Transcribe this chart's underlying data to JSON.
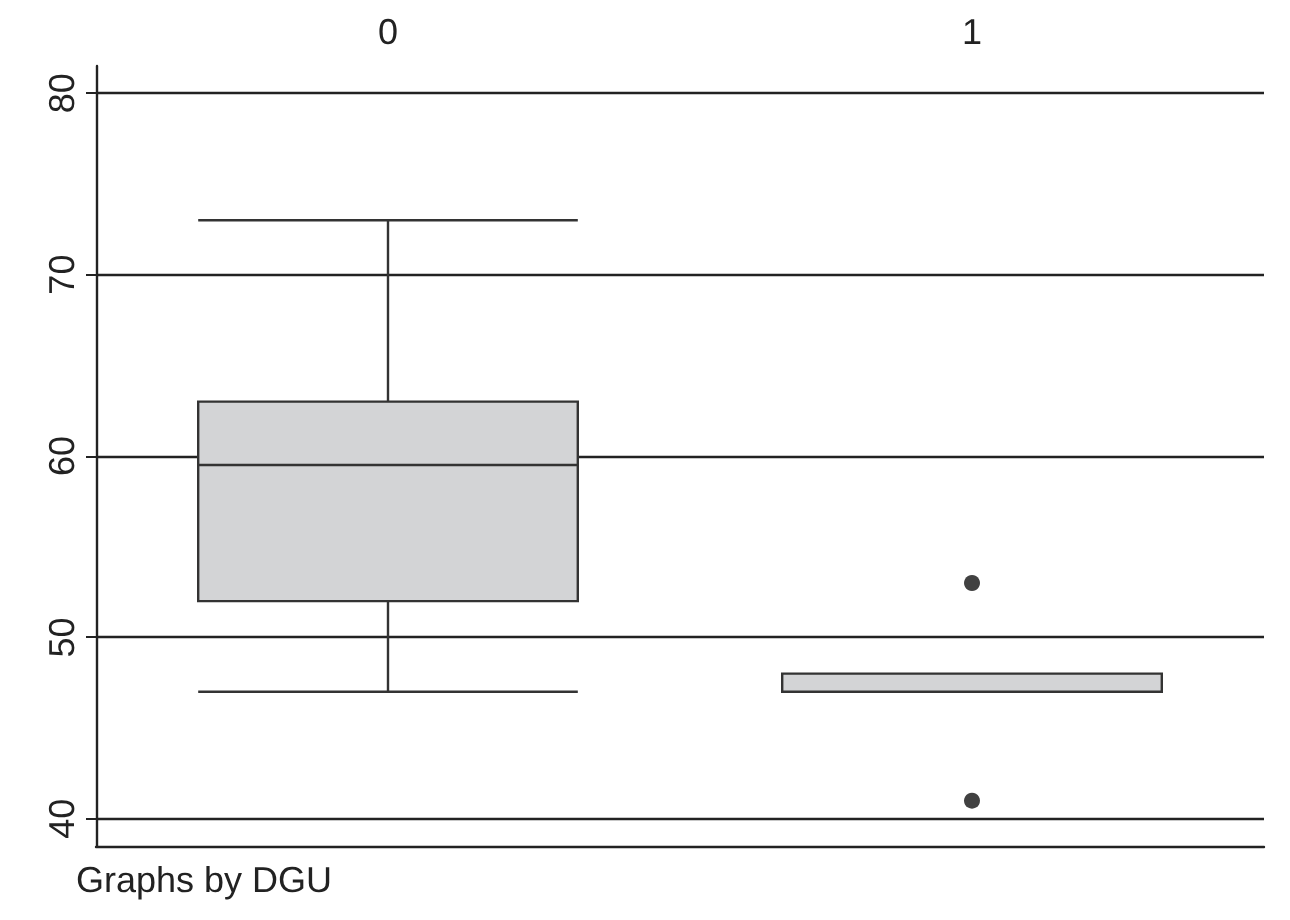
{
  "chart_data": {
    "type": "box",
    "categories": [
      "0",
      "1"
    ],
    "color": "#d3d4d6",
    "boxes": [
      {
        "low": 47,
        "q1": 52,
        "median": 59.5,
        "q3": 63,
        "high": 73
      },
      {
        "low": 47,
        "q1": 47,
        "median": 47,
        "q3": 48,
        "high": 48,
        "outliers": [
          53,
          41
        ]
      }
    ],
    "ylim": [
      38.5,
      81.5
    ],
    "yticks": [
      40,
      50,
      60,
      70,
      80
    ],
    "grid": "y",
    "annotations": [
      "Graphs by DGU"
    ]
  }
}
